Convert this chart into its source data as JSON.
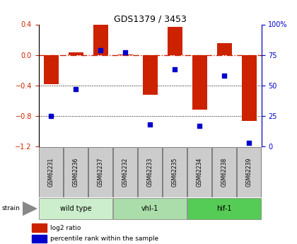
{
  "title": "GDS1379 / 3453",
  "samples": [
    "GSM62231",
    "GSM62236",
    "GSM62237",
    "GSM62232",
    "GSM62233",
    "GSM62235",
    "GSM62234",
    "GSM62238",
    "GSM62239"
  ],
  "log2_ratio": [
    -0.38,
    0.03,
    0.4,
    0.01,
    -0.52,
    0.37,
    -0.72,
    0.15,
    -0.87
  ],
  "percentile_rank": [
    25,
    47,
    79,
    77,
    18,
    63,
    17,
    58,
    3
  ],
  "groups": [
    {
      "label": "wild type",
      "indices": [
        0,
        1,
        2
      ],
      "color": "#cceecc"
    },
    {
      "label": "vhl-1",
      "indices": [
        3,
        4,
        5
      ],
      "color": "#aaddaa"
    },
    {
      "label": "hif-1",
      "indices": [
        6,
        7,
        8
      ],
      "color": "#55cc55"
    }
  ],
  "bar_color": "#cc2200",
  "dot_color": "#0000cc",
  "ylim_left": [
    -1.2,
    0.4
  ],
  "ylim_right": [
    0,
    100
  ],
  "yticks_left": [
    0.4,
    0.0,
    -0.4,
    -0.8,
    -1.2
  ],
  "yticks_right": [
    100,
    75,
    50,
    25,
    0
  ],
  "hline_y": 0.0,
  "dotted_lines": [
    -0.4,
    -0.8
  ],
  "bg_color": "#ffffff",
  "plot_bg_color": "#ffffff",
  "legend_items": [
    {
      "label": "log2 ratio",
      "color": "#cc2200"
    },
    {
      "label": "percentile rank within the sample",
      "color": "#0000cc"
    }
  ]
}
